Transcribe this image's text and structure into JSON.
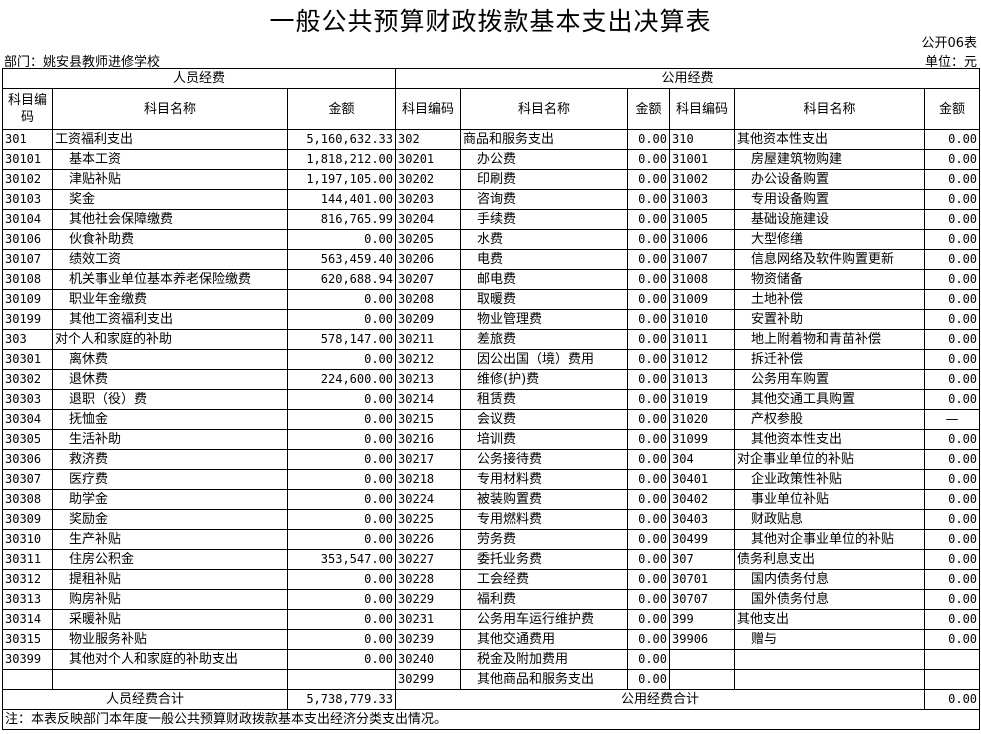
{
  "title": "一般公共预算财政拨款基本支出决算表",
  "form_no": "公开06表",
  "department": "部门：姚安县教师进修学校",
  "unit": "单位：元",
  "headers": {
    "personnel": "人员经费",
    "public": "公用经费",
    "code": "科目编码",
    "name": "科目名称",
    "amount": "金额"
  },
  "personnel_rows": [
    {
      "code": "301",
      "name": "工资福利支出",
      "amount": "5,160,632.33",
      "indent": false
    },
    {
      "code": "30101",
      "name": "基本工资",
      "amount": "1,818,212.00",
      "indent": true
    },
    {
      "code": "30102",
      "name": "津贴补贴",
      "amount": "1,197,105.00",
      "indent": true
    },
    {
      "code": "30103",
      "name": "奖金",
      "amount": "144,401.00",
      "indent": true
    },
    {
      "code": "30104",
      "name": "其他社会保障缴费",
      "amount": "816,765.99",
      "indent": true
    },
    {
      "code": "30106",
      "name": "伙食补助费",
      "amount": "0.00",
      "indent": true
    },
    {
      "code": "30107",
      "name": "绩效工资",
      "amount": "563,459.40",
      "indent": true
    },
    {
      "code": "30108",
      "name": "机关事业单位基本养老保险缴费",
      "amount": "620,688.94",
      "indent": true
    },
    {
      "code": "30109",
      "name": "职业年金缴费",
      "amount": "0.00",
      "indent": true
    },
    {
      "code": "30199",
      "name": "其他工资福利支出",
      "amount": "0.00",
      "indent": true
    },
    {
      "code": "303",
      "name": "对个人和家庭的补助",
      "amount": "578,147.00",
      "indent": false
    },
    {
      "code": "30301",
      "name": "离休费",
      "amount": "0.00",
      "indent": true
    },
    {
      "code": "30302",
      "name": "退休费",
      "amount": "224,600.00",
      "indent": true
    },
    {
      "code": "30303",
      "name": "退职（役）费",
      "amount": "0.00",
      "indent": true
    },
    {
      "code": "30304",
      "name": "抚恤金",
      "amount": "0.00",
      "indent": true
    },
    {
      "code": "30305",
      "name": "生活补助",
      "amount": "0.00",
      "indent": true
    },
    {
      "code": "30306",
      "name": "救济费",
      "amount": "0.00",
      "indent": true
    },
    {
      "code": "30307",
      "name": "医疗费",
      "amount": "0.00",
      "indent": true
    },
    {
      "code": "30308",
      "name": "助学金",
      "amount": "0.00",
      "indent": true
    },
    {
      "code": "30309",
      "name": "奖励金",
      "amount": "0.00",
      "indent": true
    },
    {
      "code": "30310",
      "name": "生产补贴",
      "amount": "0.00",
      "indent": true
    },
    {
      "code": "30311",
      "name": "住房公积金",
      "amount": "353,547.00",
      "indent": true
    },
    {
      "code": "30312",
      "name": "提租补贴",
      "amount": "0.00",
      "indent": true
    },
    {
      "code": "30313",
      "name": "购房补贴",
      "amount": "0.00",
      "indent": true
    },
    {
      "code": "30314",
      "name": "采暖补贴",
      "amount": "0.00",
      "indent": true
    },
    {
      "code": "30315",
      "name": "物业服务补贴",
      "amount": "0.00",
      "indent": true
    },
    {
      "code": "30399",
      "name": "其他对个人和家庭的补助支出",
      "amount": "0.00",
      "indent": true
    },
    {
      "code": "",
      "name": "",
      "amount": "",
      "indent": false
    }
  ],
  "public_rows_a": [
    {
      "code": "302",
      "name": "商品和服务支出",
      "amount": "0.00",
      "indent": false
    },
    {
      "code": "30201",
      "name": "办公费",
      "amount": "0.00",
      "indent": true
    },
    {
      "code": "30202",
      "name": "印刷费",
      "amount": "0.00",
      "indent": true
    },
    {
      "code": "30203",
      "name": "咨询费",
      "amount": "0.00",
      "indent": true
    },
    {
      "code": "30204",
      "name": "手续费",
      "amount": "0.00",
      "indent": true
    },
    {
      "code": "30205",
      "name": "水费",
      "amount": "0.00",
      "indent": true
    },
    {
      "code": "30206",
      "name": "电费",
      "amount": "0.00",
      "indent": true
    },
    {
      "code": "30207",
      "name": "邮电费",
      "amount": "0.00",
      "indent": true
    },
    {
      "code": "30208",
      "name": "取暖费",
      "amount": "0.00",
      "indent": true
    },
    {
      "code": "30209",
      "name": "物业管理费",
      "amount": "0.00",
      "indent": true
    },
    {
      "code": "30211",
      "name": "差旅费",
      "amount": "0.00",
      "indent": true
    },
    {
      "code": "30212",
      "name": "因公出国（境）费用",
      "amount": "0.00",
      "indent": true
    },
    {
      "code": "30213",
      "name": "维修(护)费",
      "amount": "0.00",
      "indent": true
    },
    {
      "code": "30214",
      "name": "租赁费",
      "amount": "0.00",
      "indent": true
    },
    {
      "code": "30215",
      "name": "会议费",
      "amount": "0.00",
      "indent": true
    },
    {
      "code": "30216",
      "name": "培训费",
      "amount": "0.00",
      "indent": true
    },
    {
      "code": "30217",
      "name": "公务接待费",
      "amount": "0.00",
      "indent": true
    },
    {
      "code": "30218",
      "name": "专用材料费",
      "amount": "0.00",
      "indent": true
    },
    {
      "code": "30224",
      "name": "被装购置费",
      "amount": "0.00",
      "indent": true
    },
    {
      "code": "30225",
      "name": "专用燃料费",
      "amount": "0.00",
      "indent": true
    },
    {
      "code": "30226",
      "name": "劳务费",
      "amount": "0.00",
      "indent": true
    },
    {
      "code": "30227",
      "name": "委托业务费",
      "amount": "0.00",
      "indent": true
    },
    {
      "code": "30228",
      "name": "工会经费",
      "amount": "0.00",
      "indent": true
    },
    {
      "code": "30229",
      "name": "福利费",
      "amount": "0.00",
      "indent": true
    },
    {
      "code": "30231",
      "name": "公务用车运行维护费",
      "amount": "0.00",
      "indent": true
    },
    {
      "code": "30239",
      "name": "其他交通费用",
      "amount": "0.00",
      "indent": true
    },
    {
      "code": "30240",
      "name": "税金及附加费用",
      "amount": "0.00",
      "indent": true
    },
    {
      "code": "30299",
      "name": "其他商品和服务支出",
      "amount": "0.00",
      "indent": true
    }
  ],
  "public_rows_b": [
    {
      "code": "310",
      "name": "其他资本性支出",
      "amount": "0.00",
      "indent": false
    },
    {
      "code": "31001",
      "name": "房屋建筑物购建",
      "amount": "0.00",
      "indent": true
    },
    {
      "code": "31002",
      "name": "办公设备购置",
      "amount": "0.00",
      "indent": true
    },
    {
      "code": "31003",
      "name": "专用设备购置",
      "amount": "0.00",
      "indent": true
    },
    {
      "code": "31005",
      "name": "基础设施建设",
      "amount": "0.00",
      "indent": true
    },
    {
      "code": "31006",
      "name": "大型修缮",
      "amount": "0.00",
      "indent": true
    },
    {
      "code": "31007",
      "name": "信息网络及软件购置更新",
      "amount": "0.00",
      "indent": true
    },
    {
      "code": "31008",
      "name": "物资储备",
      "amount": "0.00",
      "indent": true
    },
    {
      "code": "31009",
      "name": "土地补偿",
      "amount": "0.00",
      "indent": true
    },
    {
      "code": "31010",
      "name": "安置补助",
      "amount": "0.00",
      "indent": true
    },
    {
      "code": "31011",
      "name": "地上附着物和青苗补偿",
      "amount": "0.00",
      "indent": true
    },
    {
      "code": "31012",
      "name": "拆迁补偿",
      "amount": "0.00",
      "indent": true
    },
    {
      "code": "31013",
      "name": "公务用车购置",
      "amount": "0.00",
      "indent": true
    },
    {
      "code": "31019",
      "name": "其他交通工具购置",
      "amount": "0.00",
      "indent": true
    },
    {
      "code": "31020",
      "name": "产权参股",
      "amount": "—",
      "indent": true
    },
    {
      "code": "31099",
      "name": "其他资本性支出",
      "amount": "0.00",
      "indent": true
    },
    {
      "code": "304",
      "name": "对企事业单位的补贴",
      "amount": "0.00",
      "indent": false
    },
    {
      "code": "30401",
      "name": "企业政策性补贴",
      "amount": "0.00",
      "indent": true
    },
    {
      "code": "30402",
      "name": "事业单位补贴",
      "amount": "0.00",
      "indent": true
    },
    {
      "code": "30403",
      "name": "财政贴息",
      "amount": "0.00",
      "indent": true
    },
    {
      "code": "30499",
      "name": "其他对企事业单位的补贴",
      "amount": "0.00",
      "indent": true
    },
    {
      "code": "307",
      "name": "债务利息支出",
      "amount": "0.00",
      "indent": false
    },
    {
      "code": "30701",
      "name": "国内债务付息",
      "amount": "0.00",
      "indent": true
    },
    {
      "code": "30707",
      "name": "国外债务付息",
      "amount": "0.00",
      "indent": true
    },
    {
      "code": "399",
      "name": "其他支出",
      "amount": "0.00",
      "indent": false
    },
    {
      "code": "39906",
      "name": "赠与",
      "amount": "0.00",
      "indent": true
    },
    {
      "code": "",
      "name": "",
      "amount": "",
      "indent": false
    },
    {
      "code": "",
      "name": "",
      "amount": "",
      "indent": false
    }
  ],
  "totals": {
    "personnel_label": "人员经费合计",
    "personnel_amount": "5,738,779.33",
    "public_label": "公用经费合计",
    "public_amount": "0.00"
  },
  "note": "注：本表反映部门本年度一般公共预算财政拨款基本支出经济分类支出情况。"
}
